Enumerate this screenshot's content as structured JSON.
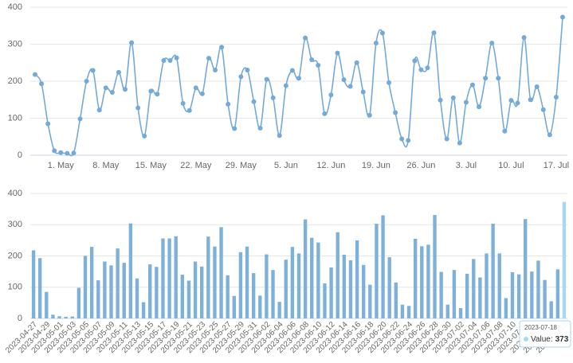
{
  "chart_data": [
    {
      "type": "line",
      "color": "#74aad8",
      "grid": true,
      "x": [
        "2023-04-27",
        "2023-04-28",
        "2023-04-29",
        "2023-04-30",
        "2023-05-01",
        "2023-05-02",
        "2023-05-03",
        "2023-05-04",
        "2023-05-05",
        "2023-05-06",
        "2023-05-07",
        "2023-05-08",
        "2023-05-09",
        "2023-05-10",
        "2023-05-11",
        "2023-05-12",
        "2023-05-13",
        "2023-05-14",
        "2023-05-15",
        "2023-05-16",
        "2023-05-17",
        "2023-05-18",
        "2023-05-19",
        "2023-05-20",
        "2023-05-21",
        "2023-05-22",
        "2023-05-23",
        "2023-05-24",
        "2023-05-25",
        "2023-05-26",
        "2023-05-27",
        "2023-05-28",
        "2023-05-29",
        "2023-05-30",
        "2023-05-31",
        "2023-06-01",
        "2023-06-02",
        "2023-06-03",
        "2023-06-04",
        "2023-06-05",
        "2023-06-06",
        "2023-06-07",
        "2023-06-08",
        "2023-06-09",
        "2023-06-10",
        "2023-06-11",
        "2023-06-12",
        "2023-06-13",
        "2023-06-14",
        "2023-06-15",
        "2023-06-16",
        "2023-06-17",
        "2023-06-18",
        "2023-06-19",
        "2023-06-20",
        "2023-06-21",
        "2023-06-22",
        "2023-06-23",
        "2023-06-24",
        "2023-06-25",
        "2023-06-26",
        "2023-06-27",
        "2023-06-28",
        "2023-06-29",
        "2023-06-30",
        "2023-07-01",
        "2023-07-02",
        "2023-07-03",
        "2023-07-04",
        "2023-07-05",
        "2023-07-06",
        "2023-07-07",
        "2023-07-08",
        "2023-07-09",
        "2023-07-10",
        "2023-07-11",
        "2023-07-12",
        "2023-07-13",
        "2023-07-14",
        "2023-07-15",
        "2023-07-16",
        "2023-07-17",
        "2023-07-18"
      ],
      "values": [
        218,
        193,
        85,
        12,
        7,
        5,
        6,
        98,
        200,
        229,
        122,
        182,
        170,
        224,
        178,
        304,
        128,
        52,
        173,
        165,
        256,
        256,
        263,
        140,
        121,
        182,
        166,
        262,
        230,
        292,
        138,
        72,
        212,
        230,
        145,
        73,
        205,
        155,
        53,
        188,
        229,
        208,
        317,
        258,
        243,
        112,
        163,
        276,
        204,
        186,
        250,
        171,
        108,
        303,
        330,
        196,
        115,
        44,
        40,
        255,
        231,
        236,
        331,
        149,
        44,
        155,
        33,
        143,
        190,
        131,
        208,
        303,
        208,
        65,
        148,
        141,
        318,
        150,
        185,
        123,
        55,
        157,
        373
      ],
      "ylim": [
        0,
        400
      ],
      "yticks": [
        0,
        100,
        200,
        300,
        400
      ],
      "xticks": [
        {
          "value": "2023-05-01",
          "label": "1. May"
        },
        {
          "value": "2023-05-08",
          "label": "8. May"
        },
        {
          "value": "2023-05-15",
          "label": "15. May"
        },
        {
          "value": "2023-05-22",
          "label": "22. May"
        },
        {
          "value": "2023-05-29",
          "label": "29. May"
        },
        {
          "value": "2023-06-05",
          "label": "5. Jun"
        },
        {
          "value": "2023-06-12",
          "label": "12. Jun"
        },
        {
          "value": "2023-06-19",
          "label": "19. Jun"
        },
        {
          "value": "2023-06-26",
          "label": "26. Jun"
        },
        {
          "value": "2023-07-03",
          "label": "3. Jul"
        },
        {
          "value": "2023-07-10",
          "label": "10. Jul"
        },
        {
          "value": "2023-07-17",
          "label": "17. Jul"
        }
      ]
    },
    {
      "type": "bar",
      "color": "#7eb1d9",
      "highlight_color": "#a9d6f0",
      "grid": true,
      "x": [
        "2023-04-27",
        "2023-04-28",
        "2023-04-29",
        "2023-04-30",
        "2023-05-01",
        "2023-05-02",
        "2023-05-03",
        "2023-05-04",
        "2023-05-05",
        "2023-05-06",
        "2023-05-07",
        "2023-05-08",
        "2023-05-09",
        "2023-05-10",
        "2023-05-11",
        "2023-05-12",
        "2023-05-13",
        "2023-05-14",
        "2023-05-15",
        "2023-05-16",
        "2023-05-17",
        "2023-05-18",
        "2023-05-19",
        "2023-05-20",
        "2023-05-21",
        "2023-05-22",
        "2023-05-23",
        "2023-05-24",
        "2023-05-25",
        "2023-05-26",
        "2023-05-27",
        "2023-05-28",
        "2023-05-29",
        "2023-05-30",
        "2023-05-31",
        "2023-06-01",
        "2023-06-02",
        "2023-06-03",
        "2023-06-04",
        "2023-06-05",
        "2023-06-06",
        "2023-06-07",
        "2023-06-08",
        "2023-06-09",
        "2023-06-10",
        "2023-06-11",
        "2023-06-12",
        "2023-06-13",
        "2023-06-14",
        "2023-06-15",
        "2023-06-16",
        "2023-06-17",
        "2023-06-18",
        "2023-06-19",
        "2023-06-20",
        "2023-06-21",
        "2023-06-22",
        "2023-06-23",
        "2023-06-24",
        "2023-06-25",
        "2023-06-26",
        "2023-06-27",
        "2023-06-28",
        "2023-06-29",
        "2023-06-30",
        "2023-07-01",
        "2023-07-02",
        "2023-07-03",
        "2023-07-04",
        "2023-07-05",
        "2023-07-06",
        "2023-07-07",
        "2023-07-08",
        "2023-07-09",
        "2023-07-10",
        "2023-07-11",
        "2023-07-12",
        "2023-07-13",
        "2023-07-14",
        "2023-07-15",
        "2023-07-16",
        "2023-07-17",
        "2023-07-18"
      ],
      "values": [
        218,
        193,
        85,
        12,
        7,
        5,
        6,
        98,
        200,
        229,
        122,
        182,
        170,
        224,
        178,
        304,
        128,
        52,
        173,
        165,
        256,
        256,
        263,
        140,
        121,
        182,
        166,
        262,
        230,
        292,
        138,
        72,
        212,
        230,
        145,
        73,
        205,
        155,
        53,
        188,
        229,
        208,
        317,
        258,
        243,
        112,
        163,
        276,
        204,
        186,
        250,
        171,
        108,
        303,
        330,
        196,
        115,
        44,
        40,
        255,
        231,
        236,
        331,
        149,
        44,
        155,
        33,
        143,
        190,
        131,
        208,
        303,
        208,
        65,
        148,
        141,
        318,
        150,
        185,
        123,
        55,
        157,
        373
      ],
      "ylim": [
        0,
        400
      ],
      "yticks": [
        0,
        100,
        200,
        300,
        400
      ],
      "tooltip": {
        "x": "2023-07-18",
        "label": "Value:",
        "value": 373
      }
    }
  ]
}
